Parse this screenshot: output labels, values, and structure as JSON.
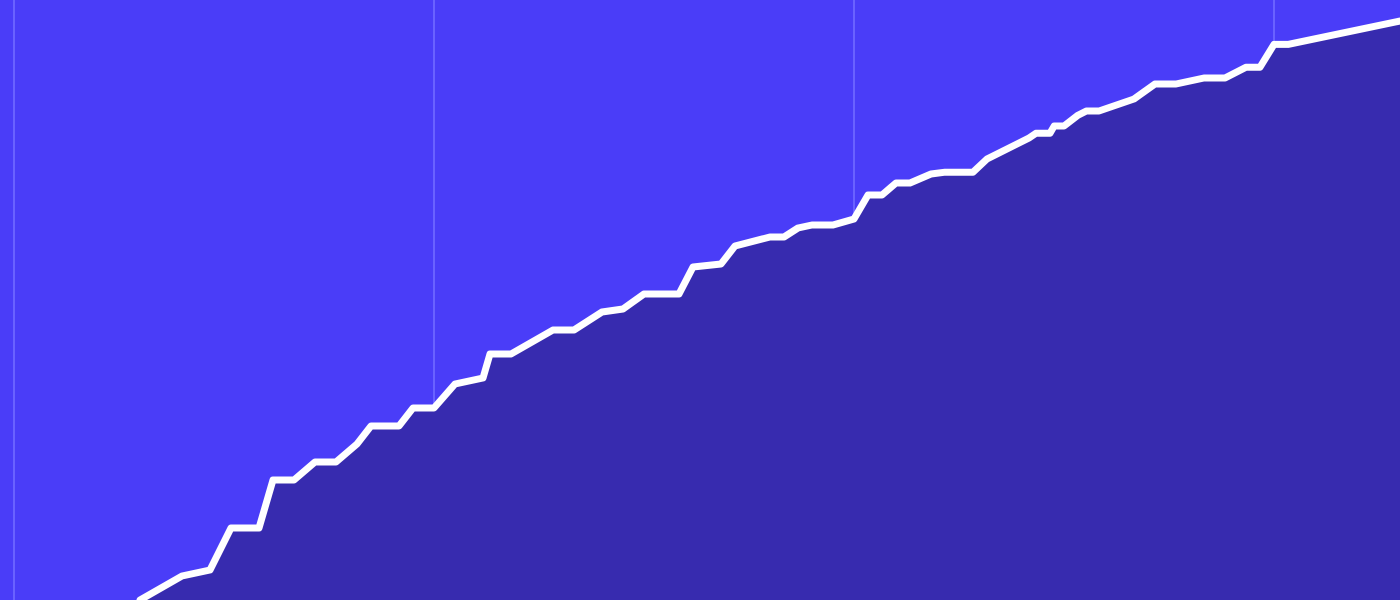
{
  "chart_data": {
    "type": "area",
    "title": "",
    "xlabel": "",
    "ylabel": "",
    "grid": "vertical",
    "legend": "none",
    "colors": {
      "background": "#4a3df8",
      "fill": "#372baf",
      "line": "#ffffff",
      "grid": "#6a62ff"
    },
    "xlim": [
      0,
      100
    ],
    "ylim": [
      0,
      100
    ],
    "x_gridlines": [
      1,
      31,
      61,
      91
    ],
    "series": [
      {
        "values": [
          [
            10,
            0
          ],
          [
            13,
            4
          ],
          [
            15,
            5
          ],
          [
            16.5,
            12
          ],
          [
            18.5,
            12
          ],
          [
            19.5,
            20
          ],
          [
            21,
            20
          ],
          [
            22.5,
            23
          ],
          [
            24,
            23
          ],
          [
            25.5,
            26
          ],
          [
            26.5,
            29
          ],
          [
            28.5,
            29
          ],
          [
            29.5,
            32
          ],
          [
            31,
            32
          ],
          [
            32.5,
            36
          ],
          [
            34.5,
            37
          ],
          [
            35,
            41
          ],
          [
            36.5,
            41
          ],
          [
            39.5,
            45
          ],
          [
            41,
            45
          ],
          [
            43,
            48
          ],
          [
            44.5,
            48.5
          ],
          [
            46,
            51
          ],
          [
            48.5,
            51
          ],
          [
            49.5,
            55.5
          ],
          [
            51.5,
            56
          ],
          [
            52.5,
            59
          ],
          [
            55,
            60.5
          ],
          [
            56,
            60.5
          ],
          [
            57,
            62
          ],
          [
            58,
            62.5
          ],
          [
            59.5,
            62.5
          ],
          [
            61,
            63.5
          ],
          [
            62,
            67.5
          ],
          [
            63,
            67.5
          ],
          [
            64,
            69.5
          ],
          [
            65,
            69.5
          ],
          [
            66.5,
            71
          ],
          [
            67.5,
            71.3
          ],
          [
            69.5,
            71.3
          ],
          [
            70.5,
            73.5
          ],
          [
            73.5,
            77
          ],
          [
            74,
            77.8
          ],
          [
            75,
            77.8
          ],
          [
            75.3,
            79
          ],
          [
            76,
            79
          ],
          [
            77,
            80.8
          ],
          [
            77.6,
            81.5
          ],
          [
            78.5,
            81.5
          ],
          [
            81,
            83.5
          ],
          [
            82.5,
            86
          ],
          [
            84,
            86
          ],
          [
            86,
            87
          ],
          [
            87.5,
            87
          ],
          [
            89,
            88.8
          ],
          [
            90,
            88.8
          ],
          [
            91,
            92.6
          ],
          [
            92,
            92.6
          ],
          [
            100,
            96.5
          ]
        ]
      }
    ]
  }
}
